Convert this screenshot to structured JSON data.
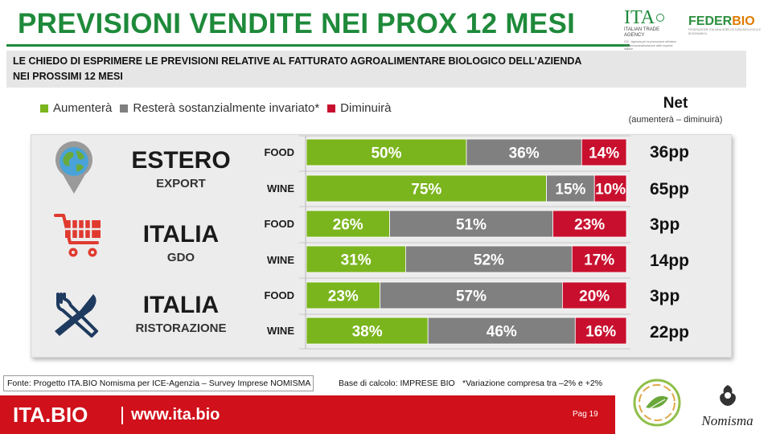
{
  "header": {
    "title": "PREVISIONI VENDITE NEI PROX 12 MESI",
    "question_line1": "LE CHIEDO DI ESPRIMERE LE PREVISIONI RELATIVE AL FATTURATO  AGROALIMENTARE BIOLOGICO DELL’AZIENDA",
    "question_line2": "NEI PROSSIMI 12 MESI"
  },
  "logos": {
    "ita_big": "ITA",
    "ita_agency": "ITALIAN TRADE AGENCY",
    "ita_sub": "ICE - Agenzia per la promozione all'estero e l'internazionalizzazione delle imprese italiane",
    "federbio_a": "FEDER",
    "federbio_b": "BIO",
    "federbio_tag": "FEDERAZIONE ITALIANA AGRICOLTURA BIOLOGICA E BIODINAMICA",
    "nomisma": "Nomisma"
  },
  "net_header": {
    "title": "Net",
    "subtitle": "(aumenterà – diminuirà)"
  },
  "groups": [
    {
      "title": "ESTERO",
      "subtitle": "EXPORT",
      "icon": "globe-pin-icon"
    },
    {
      "title": "ITALIA",
      "subtitle": "GDO",
      "icon": "shopping-cart-icon"
    },
    {
      "title": "ITALIA",
      "subtitle": "RISTORAZIONE",
      "icon": "fork-knife-icon"
    }
  ],
  "chart_data": {
    "type": "bar",
    "orientation": "horizontal",
    "stacked": true,
    "percent_stacked": true,
    "categories": [
      "ESTERO FOOD",
      "ESTERO WINE",
      "GDO FOOD",
      "GDO WINE",
      "RISTORAZIONE FOOD",
      "RISTORAZIONE WINE"
    ],
    "row_labels": [
      "FOOD",
      "WINE",
      "FOOD",
      "WINE",
      "FOOD",
      "WINE"
    ],
    "series": [
      {
        "name": "Aumenterà",
        "color": "#7ab51d",
        "values": [
          50,
          75,
          26,
          31,
          23,
          38
        ],
        "labels": [
          "50%",
          "75%",
          "26%",
          "31%",
          "23%",
          "38%"
        ]
      },
      {
        "name": "Resterà sostanzialmente invariato*",
        "color": "#808080",
        "values": [
          36,
          15,
          51,
          52,
          57,
          46
        ],
        "labels": [
          "36%",
          "15%",
          "51%",
          "52%",
          "57%",
          "46%"
        ]
      },
      {
        "name": "Diminuirà",
        "color": "#c8102e",
        "values": [
          14,
          10,
          23,
          17,
          20,
          16
        ],
        "labels": [
          "14%",
          "10%",
          "23%",
          "17%",
          "20%",
          "16%"
        ]
      }
    ],
    "net": [
      "36pp",
      "65pp",
      "3pp",
      "14pp",
      "3pp",
      "22pp"
    ],
    "xlim": [
      0,
      100
    ],
    "legend_position": "top-left"
  },
  "footer": {
    "source": "Fonte: Progetto ITA.BIO Nomisma per ICE-Agenzia – Survey Imprese NOMISMA",
    "base": "Base di calcolo: IMPRESE BIO",
    "note": "*Variazione compresa tra –2% e +2%",
    "brand": "ITA.BIO",
    "url": "www.ita.bio",
    "page": "Pag 19"
  }
}
